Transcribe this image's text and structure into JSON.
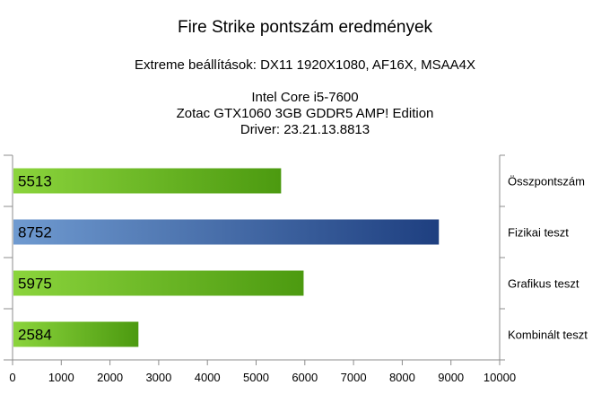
{
  "chart_data": {
    "type": "bar",
    "orientation": "horizontal",
    "title": "Fire Strike pontszám eredmények",
    "subtitle": "Extreme beállítások: DX11 1920X1080, AF16X, MSAA4X",
    "info_lines": [
      "Intel Core i5-7600",
      "Zotac GTX1060 3GB GDDR5 AMP! Edition",
      "Driver: 23.21.13.8813"
    ],
    "categories": [
      "Összpontszám",
      "Fizikai teszt",
      "Grafikus teszt",
      "Kombinált teszt"
    ],
    "values": [
      5513,
      8752,
      5975,
      2584
    ],
    "bar_colors": [
      "green",
      "blue",
      "green",
      "green"
    ],
    "xlim": [
      0,
      10000
    ],
    "xticks": [
      0,
      1000,
      2000,
      3000,
      4000,
      5000,
      6000,
      7000,
      8000,
      9000,
      10000
    ],
    "category_label_position": "right",
    "data_labels": "inside-left",
    "grid": false,
    "colors": {
      "green_light": "#8bd43c",
      "green_dark": "#4c9a10",
      "blue_light": "#6f9ad0",
      "blue_dark": "#1e3f80",
      "axis": "#8c8c8c"
    }
  }
}
